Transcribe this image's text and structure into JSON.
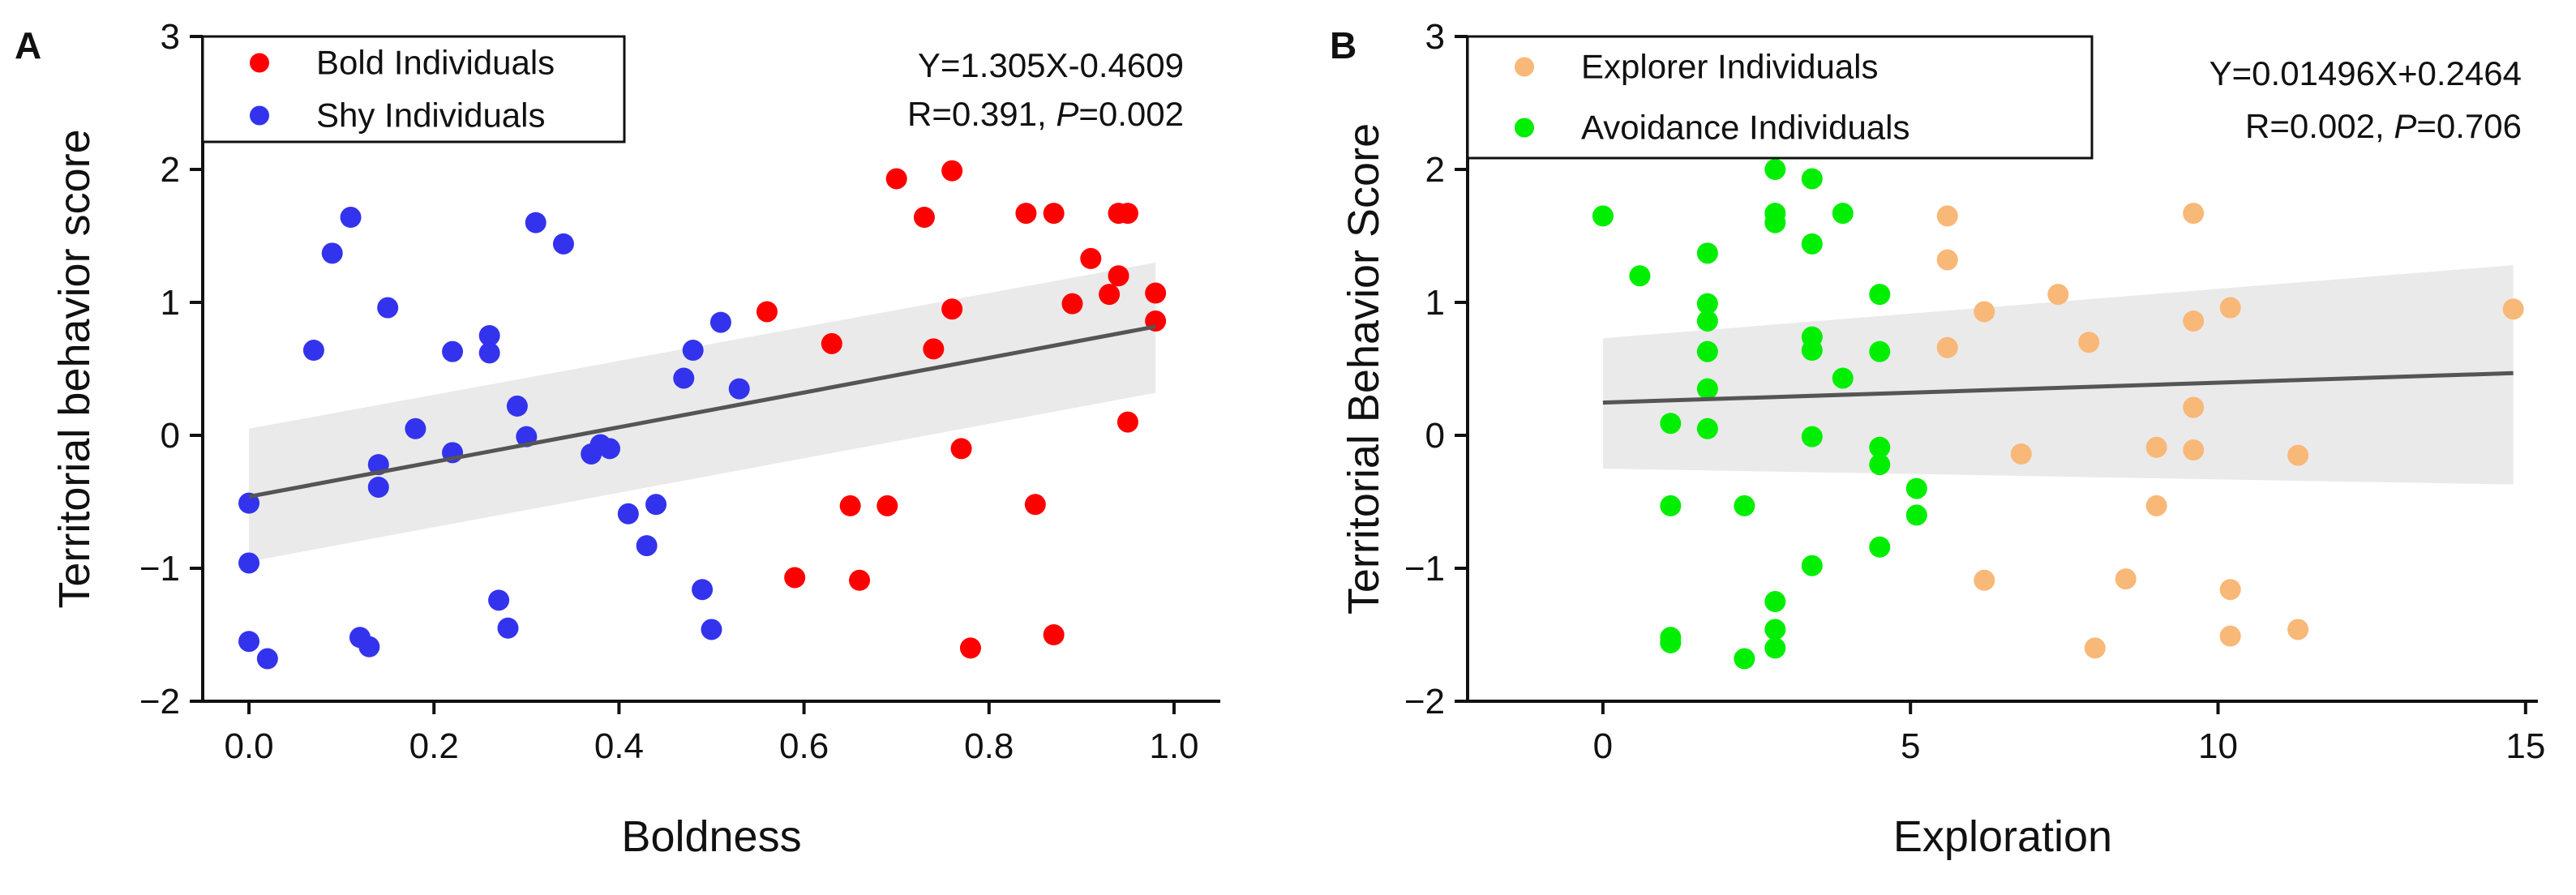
{
  "chart_data": [
    {
      "type": "scatter",
      "panel": "A",
      "xlabel": "Boldness",
      "ylabel": "Territorial behavior score",
      "xlim": [
        -0.05,
        1.05
      ],
      "ylim": [
        -2,
        3
      ],
      "xticks": [
        0.0,
        0.2,
        0.4,
        0.6,
        0.8,
        1.0
      ],
      "xtick_labels": [
        "0.0",
        "0.2",
        "0.4",
        "0.6",
        "0.8",
        "1.0"
      ],
      "yticks": [
        -2,
        -1,
        0,
        1,
        2,
        3
      ],
      "ytick_labels": [
        "−2",
        "−1",
        "0",
        "1",
        "2",
        "3"
      ],
      "legend_position": "top-left",
      "annotation": {
        "line1": "Y=1.305X-0.4609",
        "line2_prefix": "R=0.391, ",
        "line2_italic": "P",
        "line2_suffix": "=0.002"
      },
      "fit": {
        "slope": 1.305,
        "intercept": -0.4609,
        "ci_low": [
          -0.95,
          0.32
        ],
        "ci_high": [
          0.05,
          1.3
        ]
      },
      "series": [
        {
          "name": "Bold Individuals",
          "color": "#ff0000",
          "points": [
            [
              0.56,
              0.93
            ],
            [
              0.59,
              -1.07
            ],
            [
              0.63,
              0.69
            ],
            [
              0.65,
              -0.53
            ],
            [
              0.66,
              -1.09
            ],
            [
              0.69,
              -0.53
            ],
            [
              0.7,
              1.93
            ],
            [
              0.73,
              1.64
            ],
            [
              0.74,
              0.65
            ],
            [
              0.76,
              1.99
            ],
            [
              0.76,
              0.95
            ],
            [
              0.77,
              -0.1
            ],
            [
              0.78,
              -1.6
            ],
            [
              0.84,
              1.67
            ],
            [
              0.85,
              -0.52
            ],
            [
              0.87,
              1.67
            ],
            [
              0.87,
              -1.5
            ],
            [
              0.89,
              0.99
            ],
            [
              0.91,
              1.33
            ],
            [
              0.93,
              1.06
            ],
            [
              0.94,
              1.2
            ],
            [
              0.94,
              1.67
            ],
            [
              0.95,
              1.67
            ],
            [
              0.95,
              0.1
            ],
            [
              0.98,
              1.07
            ],
            [
              0.98,
              0.86
            ]
          ]
        },
        {
          "name": "Shy Individuals",
          "color": "#3333ee",
          "points": [
            [
              0.0,
              -0.51
            ],
            [
              0.0,
              -0.96
            ],
            [
              0.0,
              -1.55
            ],
            [
              0.02,
              -1.68
            ],
            [
              0.07,
              0.64
            ],
            [
              0.09,
              1.37
            ],
            [
              0.11,
              1.64
            ],
            [
              0.12,
              -1.52
            ],
            [
              0.13,
              -1.59
            ],
            [
              0.14,
              -0.22
            ],
            [
              0.14,
              -0.39
            ],
            [
              0.15,
              0.96
            ],
            [
              0.18,
              0.05
            ],
            [
              0.22,
              0.63
            ],
            [
              0.22,
              -0.13
            ],
            [
              0.26,
              0.75
            ],
            [
              0.26,
              0.62
            ],
            [
              0.27,
              -1.24
            ],
            [
              0.28,
              -1.45
            ],
            [
              0.29,
              0.22
            ],
            [
              0.3,
              -0.01
            ],
            [
              0.31,
              1.6
            ],
            [
              0.34,
              1.44
            ],
            [
              0.37,
              -0.14
            ],
            [
              0.38,
              -0.07
            ],
            [
              0.39,
              -0.1
            ],
            [
              0.41,
              -0.59
            ],
            [
              0.43,
              -0.83
            ],
            [
              0.44,
              -0.52
            ],
            [
              0.47,
              0.43
            ],
            [
              0.48,
              0.64
            ],
            [
              0.49,
              -1.16
            ],
            [
              0.5,
              -1.46
            ],
            [
              0.51,
              0.85
            ],
            [
              0.53,
              0.35
            ]
          ]
        }
      ]
    },
    {
      "type": "scatter",
      "panel": "B",
      "xlabel": "Exploration",
      "ylabel": "Territorial Behavior Score",
      "xlim": [
        -2.2,
        15.2
      ],
      "ylim": [
        -2,
        3
      ],
      "xticks": [
        0,
        5,
        10,
        15
      ],
      "xtick_labels": [
        "0",
        "5",
        "10",
        "15"
      ],
      "yticks": [
        -2,
        -1,
        0,
        1,
        2,
        3
      ],
      "ytick_labels": [
        "−2",
        "−1",
        "0",
        "1",
        "2",
        "3"
      ],
      "legend_position": "top-left",
      "annotation": {
        "line1": "Y=0.01496X+0.2464",
        "line2_prefix": "R=0.002, ",
        "line2_italic": "P",
        "line2_suffix": "=0.706"
      },
      "fit": {
        "slope": 0.01496,
        "intercept": 0.2464,
        "ci_low": [
          -0.25,
          -0.37
        ],
        "ci_high": [
          0.73,
          1.28
        ]
      },
      "series": [
        {
          "name": "Explorer Individuals",
          "color": "#f8b878",
          "points": [
            [
              5.6,
              1.65
            ],
            [
              5.6,
              1.32
            ],
            [
              5.6,
              0.66
            ],
            [
              6.2,
              0.93
            ],
            [
              6.2,
              -1.09
            ],
            [
              6.8,
              -0.14
            ],
            [
              7.4,
              1.06
            ],
            [
              7.9,
              0.7
            ],
            [
              8.0,
              -1.6
            ],
            [
              8.5,
              -1.08
            ],
            [
              9.0,
              -0.09
            ],
            [
              9.0,
              -0.53
            ],
            [
              9.6,
              1.67
            ],
            [
              9.6,
              0.86
            ],
            [
              9.6,
              0.21
            ],
            [
              9.6,
              -0.11
            ],
            [
              10.2,
              0.96
            ],
            [
              10.2,
              -1.16
            ],
            [
              10.2,
              -1.51
            ],
            [
              11.3,
              -0.15
            ],
            [
              11.3,
              -1.46
            ],
            [
              14.8,
              0.95
            ]
          ]
        },
        {
          "name": "Avoidance Individuals",
          "color": "#00ee00",
          "points": [
            [
              0.0,
              1.65
            ],
            [
              0.6,
              1.2
            ],
            [
              1.1,
              0.09
            ],
            [
              1.1,
              -0.53
            ],
            [
              1.1,
              -1.52
            ],
            [
              1.1,
              -1.56
            ],
            [
              1.7,
              1.37
            ],
            [
              1.7,
              0.99
            ],
            [
              1.7,
              0.86
            ],
            [
              1.7,
              0.63
            ],
            [
              1.7,
              0.35
            ],
            [
              1.7,
              0.05
            ],
            [
              2.3,
              -0.53
            ],
            [
              2.3,
              -1.68
            ],
            [
              2.8,
              2.0
            ],
            [
              2.8,
              1.67
            ],
            [
              2.8,
              1.6
            ],
            [
              2.8,
              -1.25
            ],
            [
              2.8,
              -1.46
            ],
            [
              2.8,
              -1.6
            ],
            [
              3.4,
              1.93
            ],
            [
              3.4,
              1.44
            ],
            [
              3.4,
              0.74
            ],
            [
              3.4,
              0.64
            ],
            [
              3.4,
              -0.01
            ],
            [
              3.4,
              -0.98
            ],
            [
              3.9,
              1.67
            ],
            [
              3.9,
              0.43
            ],
            [
              4.5,
              1.06
            ],
            [
              4.5,
              0.63
            ],
            [
              4.5,
              -0.09
            ],
            [
              4.5,
              -0.22
            ],
            [
              4.5,
              -0.84
            ],
            [
              5.1,
              -0.4
            ],
            [
              5.1,
              -0.6
            ]
          ]
        }
      ]
    }
  ]
}
